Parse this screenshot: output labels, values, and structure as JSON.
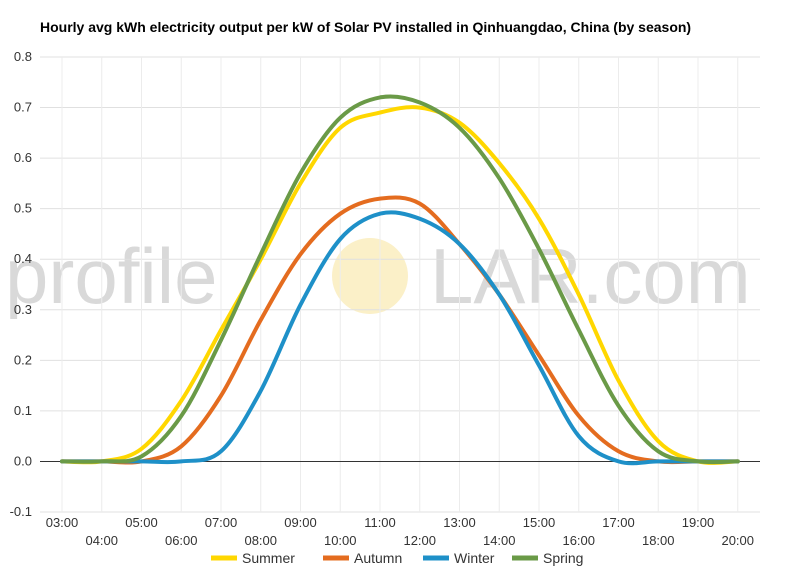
{
  "chart_data": {
    "type": "line",
    "title": "Hourly avg kWh electricity output per kW of Solar PV installed in Qinhuangdao, China (by season)",
    "xlabel": "",
    "ylabel": "",
    "ylim": [
      -0.1,
      0.8
    ],
    "yticks": [
      "-0.1",
      "0.0",
      "0.1",
      "0.2",
      "0.3",
      "0.4",
      "0.5",
      "0.6",
      "0.7",
      "0.8"
    ],
    "categories": [
      "03:00",
      "04:00",
      "05:00",
      "06:00",
      "07:00",
      "08:00",
      "09:00",
      "10:00",
      "11:00",
      "12:00",
      "13:00",
      "14:00",
      "15:00",
      "16:00",
      "17:00",
      "18:00",
      "19:00",
      "20:00"
    ],
    "grid": true,
    "legend": "bottom",
    "series": [
      {
        "name": "Summer",
        "color": "#FFD700",
        "values": [
          0,
          0,
          0.025,
          0.12,
          0.26,
          0.4,
          0.55,
          0.66,
          0.69,
          0.7,
          0.67,
          0.59,
          0.48,
          0.33,
          0.16,
          0.04,
          0,
          0
        ]
      },
      {
        "name": "Autumn",
        "color": "#E46C1F",
        "values": [
          0,
          0,
          0,
          0.03,
          0.13,
          0.28,
          0.41,
          0.49,
          0.52,
          0.51,
          0.43,
          0.33,
          0.21,
          0.09,
          0.02,
          0,
          0,
          0
        ]
      },
      {
        "name": "Winter",
        "color": "#1E90C8",
        "values": [
          0,
          0,
          0,
          0,
          0.02,
          0.14,
          0.31,
          0.44,
          0.49,
          0.48,
          0.43,
          0.33,
          0.19,
          0.05,
          0,
          0,
          0,
          0
        ]
      },
      {
        "name": "Spring",
        "color": "#6A9A47",
        "values": [
          0,
          0,
          0.01,
          0.09,
          0.24,
          0.41,
          0.57,
          0.68,
          0.72,
          0.71,
          0.66,
          0.56,
          0.42,
          0.26,
          0.11,
          0.02,
          0,
          0
        ]
      }
    ]
  },
  "watermark": {
    "prefix": "profile",
    "suffix": "LAR.com"
  }
}
